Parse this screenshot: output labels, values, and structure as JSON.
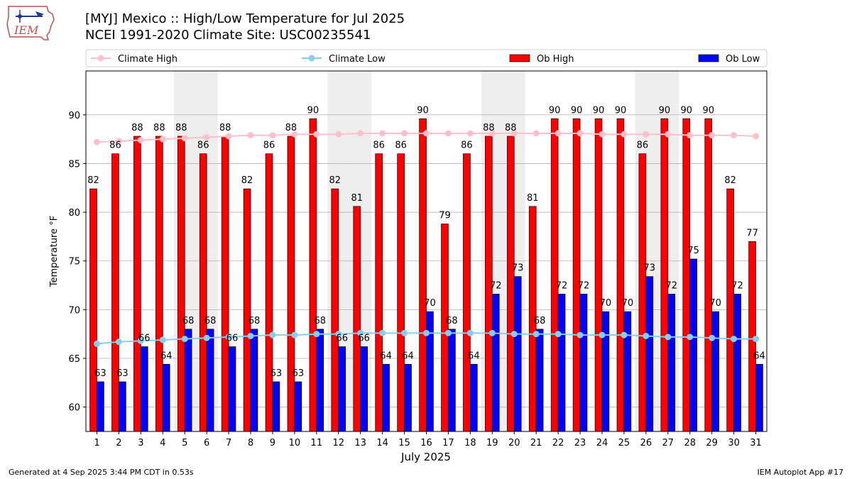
{
  "header": {
    "title_line1": "[MYJ] Mexico :: High/Low Temperature for Jul 2025",
    "title_line2": "NCEI 1991-2020 Climate Site: USC00235541",
    "logo_text": "IEM"
  },
  "footer": {
    "generated": "Generated at 4 Sep 2025 3:44 PM CDT in 0.53s",
    "app": "IEM Autoplot App #17"
  },
  "colors": {
    "ob_high": "#ff0000",
    "ob_low": "#0000ff",
    "climate_high": "#ffc0cb",
    "climate_low": "#87ceeb",
    "weekend_shade": "#eeeeee",
    "grid": "#b0b0b0"
  },
  "chart_data": {
    "type": "bar",
    "title": "[MYJ] Mexico :: High/Low Temperature for Jul 2025",
    "xlabel": "July 2025",
    "ylabel": "Temperature °F",
    "ylim": [
      57.5,
      94.5
    ],
    "yticks": [
      60,
      65,
      70,
      75,
      80,
      85,
      90
    ],
    "categories": [
      "1",
      "2",
      "3",
      "4",
      "5",
      "6",
      "7",
      "8",
      "9",
      "10",
      "11",
      "12",
      "13",
      "14",
      "15",
      "16",
      "17",
      "18",
      "19",
      "20",
      "21",
      "22",
      "23",
      "24",
      "25",
      "26",
      "27",
      "28",
      "29",
      "30",
      "31"
    ],
    "shaded_days": [
      5,
      6,
      12,
      13,
      19,
      20,
      26,
      27
    ],
    "legend_position": "top",
    "series": [
      {
        "name": "Ob High",
        "kind": "bar",
        "values": [
          82.4,
          86,
          87.8,
          87.8,
          87.8,
          86,
          87.8,
          82.4,
          86,
          87.8,
          89.6,
          82.4,
          80.6,
          86,
          86,
          89.6,
          78.8,
          86,
          87.8,
          87.8,
          80.6,
          89.6,
          89.6,
          89.6,
          89.6,
          86,
          89.6,
          89.6,
          89.6,
          82.4,
          77
        ],
        "labels": [
          "82",
          "86",
          "88",
          "88",
          "88",
          "86",
          "88",
          "82",
          "86",
          "88",
          "90",
          "82",
          "81",
          "86",
          "86",
          "90",
          "79",
          "86",
          "88",
          "88",
          "81",
          "90",
          "90",
          "90",
          "90",
          "86",
          "90",
          "90",
          "90",
          "82",
          "77"
        ]
      },
      {
        "name": "Ob Low",
        "kind": "bar",
        "values": [
          62.6,
          62.6,
          66.2,
          64.4,
          68,
          68,
          66.2,
          68,
          62.6,
          62.6,
          68,
          66.2,
          66.2,
          64.4,
          64.4,
          69.8,
          68,
          64.4,
          71.6,
          73.4,
          68,
          71.6,
          71.6,
          69.8,
          69.8,
          73.4,
          71.6,
          75.2,
          69.8,
          71.6,
          64.4
        ],
        "labels": [
          "63",
          "63",
          "66",
          "64",
          "68",
          "68",
          "66",
          "68",
          "63",
          "63",
          "68",
          "66",
          "66",
          "64",
          "64",
          "70",
          "68",
          "64",
          "72",
          "73",
          "68",
          "72",
          "72",
          "70",
          "70",
          "73",
          "72",
          "75",
          "70",
          "72",
          "64"
        ]
      },
      {
        "name": "Climate High",
        "kind": "line",
        "values": [
          87.2,
          87.3,
          87.4,
          87.5,
          87.6,
          87.7,
          87.8,
          87.9,
          87.9,
          88.0,
          88.0,
          88.0,
          88.1,
          88.1,
          88.1,
          88.1,
          88.1,
          88.1,
          88.1,
          88.1,
          88.1,
          88.1,
          88.1,
          88.0,
          88.0,
          88.0,
          88.0,
          87.9,
          87.9,
          87.9,
          87.8
        ]
      },
      {
        "name": "Climate Low",
        "kind": "line",
        "values": [
          66.5,
          66.7,
          66.8,
          66.9,
          67.0,
          67.1,
          67.2,
          67.3,
          67.4,
          67.4,
          67.5,
          67.5,
          67.6,
          67.6,
          67.6,
          67.6,
          67.6,
          67.6,
          67.6,
          67.5,
          67.5,
          67.5,
          67.4,
          67.4,
          67.4,
          67.3,
          67.2,
          67.2,
          67.1,
          67.0,
          67.0
        ]
      }
    ]
  }
}
